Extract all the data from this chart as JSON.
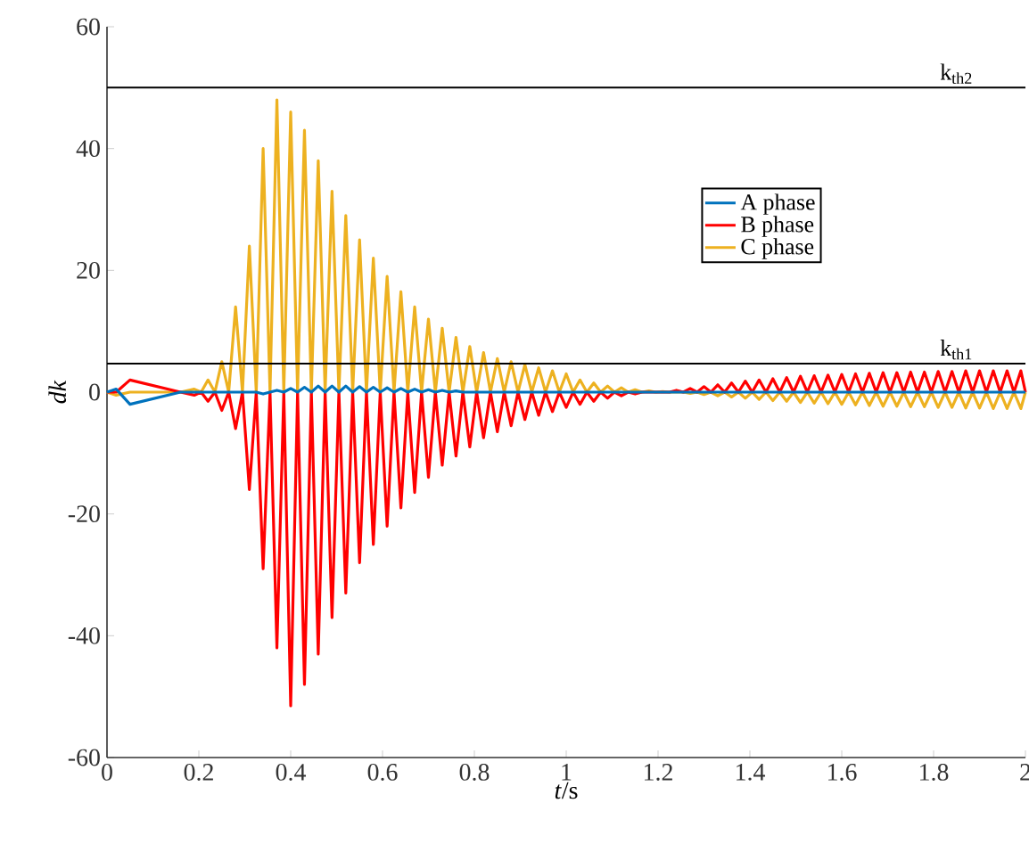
{
  "chart_data": {
    "type": "line",
    "xlabel": "*t*/s",
    "ylabel": "*dk*",
    "xlim": [
      0,
      2
    ],
    "ylim": [
      -60,
      60
    ],
    "xticks": [
      0,
      0.2,
      0.4,
      0.6,
      0.8,
      1,
      1.2,
      1.4,
      1.6,
      1.8,
      2
    ],
    "yticks": [
      -60,
      -40,
      -20,
      0,
      20,
      40,
      60
    ],
    "legend": "right",
    "ref_lines": [
      {
        "axis": "y",
        "value": 50,
        "label": "k$_{th2}$",
        "color": "#000000"
      },
      {
        "axis": "y",
        "value": 4.7,
        "label": "k$_{th1}$",
        "color": "#000000"
      }
    ],
    "x": [
      0,
      0.02,
      0.05,
      0.16,
      0.19,
      0.205,
      0.22,
      0.235,
      0.25,
      0.265,
      0.28,
      0.295,
      0.31,
      0.325,
      0.34,
      0.355,
      0.37,
      0.385,
      0.4,
      0.415,
      0.43,
      0.445,
      0.46,
      0.475,
      0.49,
      0.505,
      0.52,
      0.535,
      0.55,
      0.565,
      0.58,
      0.595,
      0.61,
      0.625,
      0.64,
      0.655,
      0.67,
      0.685,
      0.7,
      0.715,
      0.73,
      0.745,
      0.76,
      0.775,
      0.79,
      0.805,
      0.82,
      0.835,
      0.85,
      0.865,
      0.88,
      0.895,
      0.91,
      0.925,
      0.94,
      0.955,
      0.97,
      0.985,
      1.0,
      1.015,
      1.03,
      1.045,
      1.06,
      1.075,
      1.09,
      1.105,
      1.12,
      1.135,
      1.15,
      1.165,
      1.18,
      1.195,
      1.21,
      1.225,
      1.24,
      1.255,
      1.27,
      1.285,
      1.3,
      1.315,
      1.33,
      1.345,
      1.36,
      1.375,
      1.39,
      1.405,
      1.42,
      1.435,
      1.45,
      1.465,
      1.48,
      1.495,
      1.51,
      1.525,
      1.54,
      1.555,
      1.57,
      1.585,
      1.6,
      1.615,
      1.63,
      1.645,
      1.66,
      1.675,
      1.69,
      1.705,
      1.72,
      1.735,
      1.75,
      1.765,
      1.78,
      1.795,
      1.81,
      1.825,
      1.84,
      1.855,
      1.87,
      1.885,
      1.9,
      1.915,
      1.93,
      1.945,
      1.96,
      1.975,
      1.99,
      2.0
    ],
    "series": [
      {
        "name": "A phase",
        "color": "#0072bd",
        "values": [
          0,
          0.5,
          -2,
          0,
          0,
          0,
          0,
          0,
          0,
          0,
          0,
          0,
          0,
          0,
          -0.3,
          0,
          0.3,
          0,
          0.6,
          0,
          0.8,
          0,
          1,
          0,
          1,
          0,
          1,
          0,
          0.9,
          0,
          0.8,
          0,
          0.7,
          0,
          0.6,
          0,
          0.5,
          0,
          0.4,
          0,
          0.3,
          0,
          0.2,
          0,
          0,
          0,
          0,
          0,
          0,
          0,
          0,
          0,
          0,
          0,
          0,
          0,
          0,
          0,
          0,
          0,
          0,
          0,
          0,
          0,
          0,
          0,
          0,
          0,
          0,
          0,
          0,
          0,
          0,
          0,
          0,
          0,
          0,
          0,
          0,
          0,
          0,
          0,
          0,
          0,
          0,
          0,
          0,
          0,
          0,
          0,
          0,
          0,
          0,
          0,
          0,
          0,
          0,
          0,
          0,
          0,
          0,
          0,
          0,
          0,
          0,
          0,
          0,
          0,
          0,
          0,
          0,
          0,
          0,
          0,
          0,
          0,
          0,
          0,
          0,
          0,
          0,
          0,
          0,
          0,
          0,
          0
        ]
      },
      {
        "name": "B phase",
        "color": "#ff0000",
        "values": [
          0,
          0,
          2,
          0,
          -0.5,
          0,
          -1.5,
          0,
          -3,
          0,
          -6,
          0,
          -16,
          0,
          -29,
          0,
          -42,
          0,
          -51.5,
          0,
          -48,
          0,
          -43,
          0,
          -37,
          0,
          -33,
          0,
          -28,
          0,
          -25,
          0,
          -22,
          0,
          -19,
          0,
          -16.5,
          0,
          -14,
          0,
          -12,
          0,
          -10.5,
          0,
          -9,
          0,
          -7.5,
          0,
          -6.5,
          0,
          -5.5,
          0,
          -4.5,
          0,
          -3.8,
          0,
          -3.2,
          0,
          -2.5,
          0,
          -2,
          0,
          -1.5,
          0,
          -1,
          0,
          -0.6,
          0,
          -0.3,
          0,
          null,
          0,
          null,
          0,
          0.3,
          0,
          0.6,
          0,
          0.9,
          0,
          1.2,
          0,
          1.5,
          0,
          1.8,
          0,
          2,
          0,
          2.2,
          0,
          2.4,
          0,
          2.6,
          0,
          2.7,
          0,
          2.8,
          0,
          2.9,
          0,
          3,
          0,
          3.1,
          0,
          3.2,
          0,
          3.2,
          0,
          3.3,
          0,
          3.3,
          0,
          3.4,
          0,
          3.4,
          0,
          3.5,
          0,
          3.5,
          0,
          3.5,
          0,
          3.5,
          0,
          3.5,
          0
        ]
      },
      {
        "name": "C phase",
        "color": "#edb120",
        "values": [
          0,
          -0.5,
          0,
          0,
          0.5,
          0,
          2,
          0,
          5,
          0,
          14,
          0,
          24,
          0,
          40,
          0,
          48,
          0,
          46,
          0,
          43,
          0,
          38,
          0,
          33,
          0,
          29,
          0,
          25,
          0,
          22,
          0,
          19,
          0,
          16.5,
          0,
          14,
          0,
          12,
          0,
          10.5,
          0,
          9,
          0,
          7.5,
          0,
          6.5,
          0,
          5.5,
          0,
          5,
          0,
          4.5,
          0,
          4,
          0,
          3.5,
          0,
          3,
          0,
          2,
          0,
          1.5,
          0,
          1,
          0,
          0.7,
          0,
          0.4,
          0,
          0.2,
          0,
          0.1,
          0,
          0,
          0,
          -0.2,
          0,
          -0.4,
          0,
          -0.6,
          0,
          -0.8,
          0,
          -1,
          0,
          -1.2,
          0,
          -1.4,
          0,
          -1.5,
          0,
          -1.7,
          0,
          -1.8,
          0,
          -1.9,
          0,
          -2,
          0,
          -2.1,
          0,
          -2.2,
          0,
          -2.3,
          0,
          -2.3,
          0,
          -2.4,
          0,
          -2.4,
          0,
          -2.5,
          0,
          -2.5,
          0,
          -2.6,
          0,
          -2.6,
          0,
          -2.7,
          0,
          -2.7,
          0,
          -2.7,
          0
        ]
      }
    ]
  }
}
